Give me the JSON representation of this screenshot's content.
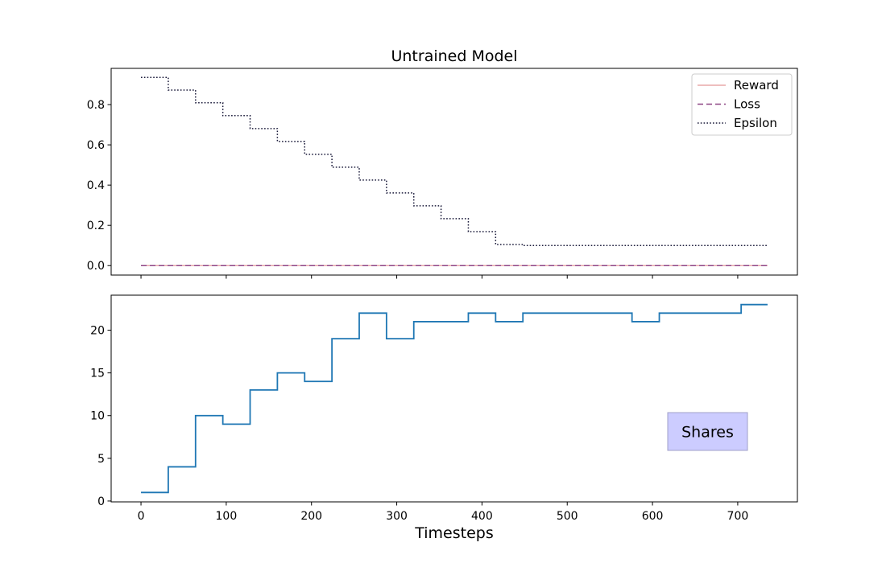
{
  "chart_data": [
    {
      "type": "line",
      "title": "Untrained Model",
      "xlabel": "",
      "ylabel": "",
      "xlim": [
        -35,
        770
      ],
      "ylim": [
        -0.047,
        0.98
      ],
      "xticks": [
        0,
        100,
        200,
        300,
        400,
        500,
        600,
        700
      ],
      "yticks": [
        0.0,
        0.2,
        0.4,
        0.6,
        0.8
      ],
      "ytick_labels": [
        "0.0",
        "0.2",
        "0.4",
        "0.6",
        "0.8"
      ],
      "show_x_tick_labels": false,
      "grid": false,
      "legend": "top-right",
      "series": [
        {
          "name": "Reward",
          "color": "#e8a9a9",
          "style": "solid",
          "step": true,
          "x": [
            0,
            735
          ],
          "y": [
            0.0,
            0.0
          ]
        },
        {
          "name": "Loss",
          "color": "#8e4585",
          "style": "dashed",
          "step": true,
          "x": [
            0,
            735
          ],
          "y": [
            0.0,
            0.0
          ]
        },
        {
          "name": "Epsilon",
          "color": "#1a1a3a",
          "style": "dotted",
          "step": true,
          "x": [
            0,
            32,
            64,
            96,
            128,
            160,
            192,
            224,
            256,
            288,
            320,
            352,
            384,
            416,
            448,
            735
          ],
          "y": [
            0.935,
            0.872,
            0.809,
            0.745,
            0.681,
            0.617,
            0.553,
            0.489,
            0.425,
            0.361,
            0.297,
            0.233,
            0.169,
            0.105,
            0.1,
            0.1
          ]
        }
      ]
    },
    {
      "type": "line",
      "title": "",
      "xlabel": "Timesteps",
      "ylabel": "",
      "xlim": [
        -35,
        770
      ],
      "ylim": [
        -0.1,
        24.1
      ],
      "xticks": [
        0,
        100,
        200,
        300,
        400,
        500,
        600,
        700
      ],
      "xtick_labels": [
        "0",
        "100",
        "200",
        "300",
        "400",
        "500",
        "600",
        "700"
      ],
      "yticks": [
        0,
        5,
        10,
        15,
        20
      ],
      "ytick_labels": [
        "0",
        "5",
        "10",
        "15",
        "20"
      ],
      "grid": false,
      "annotation": {
        "text": "Shares",
        "color": "#ccccff",
        "border": "#a0a0c8"
      },
      "series": [
        {
          "name": "",
          "color": "#1f77b4",
          "style": "solid",
          "step": true,
          "x": [
            0,
            32,
            64,
            96,
            128,
            160,
            192,
            224,
            256,
            288,
            320,
            352,
            384,
            416,
            448,
            480,
            512,
            544,
            576,
            608,
            640,
            672,
            704,
            735
          ],
          "y": [
            1,
            4,
            10,
            9,
            13,
            15,
            14,
            19,
            22,
            19,
            21,
            21,
            22,
            21,
            22,
            22,
            22,
            22,
            21,
            22,
            22,
            22,
            23,
            23
          ]
        }
      ]
    }
  ]
}
